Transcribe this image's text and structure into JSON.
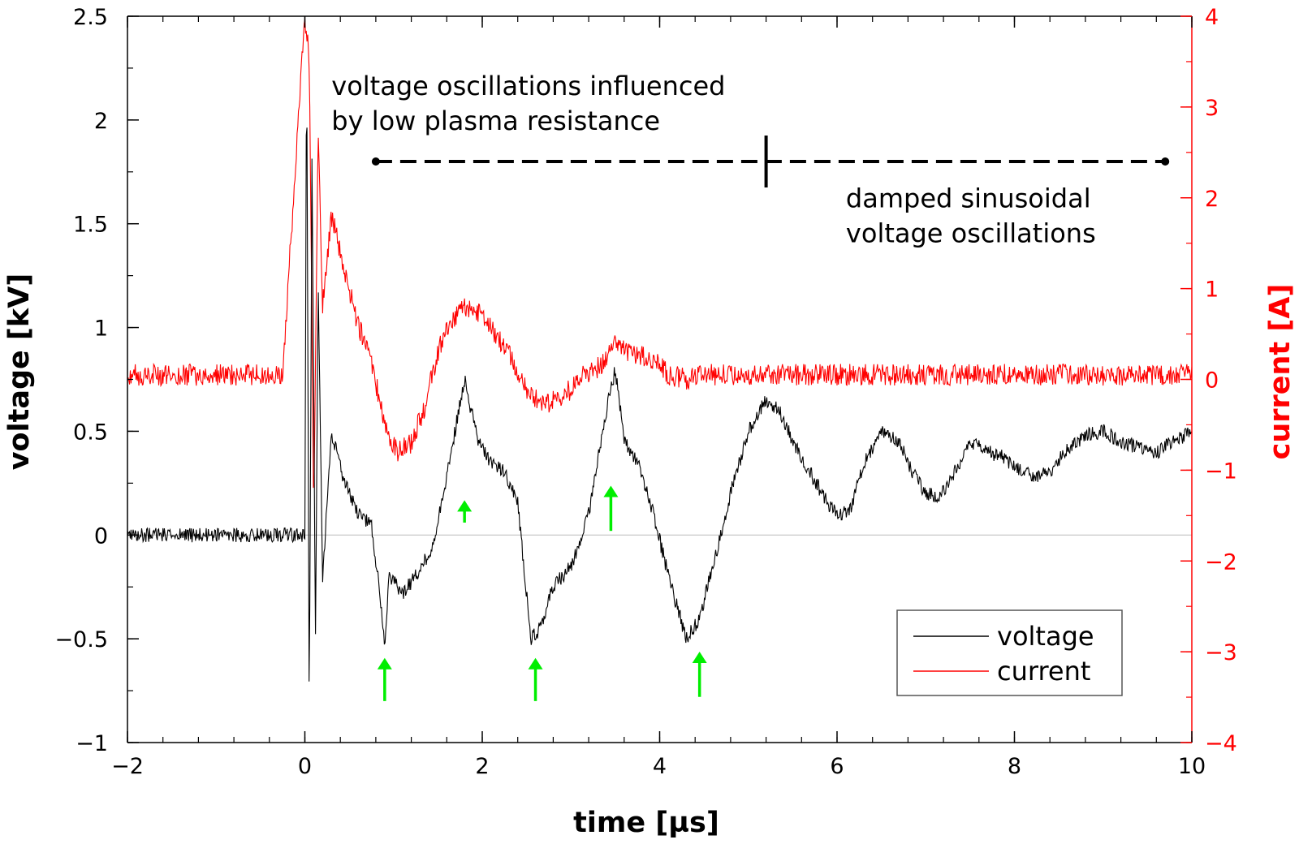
{
  "chart_data": {
    "type": "line",
    "xlabel": "time [µs]",
    "ylabel": "voltage [kV]",
    "y2label": "current [A]",
    "xlim": [
      -2,
      10
    ],
    "ylim": [
      -1,
      2.5
    ],
    "y2lim": [
      -4,
      4
    ],
    "x_ticks": [
      -2,
      0,
      2,
      4,
      6,
      8,
      10
    ],
    "x_tick_labels": [
      "−2",
      "0",
      "2",
      "4",
      "6",
      "8",
      "10"
    ],
    "y_ticks": [
      -1,
      -0.5,
      0,
      0.5,
      1,
      1.5,
      2,
      2.5
    ],
    "y_tick_labels": [
      "−1",
      "−0.5",
      "0",
      "0.5",
      "1",
      "1.5",
      "2",
      "2.5"
    ],
    "y2_ticks": [
      -4,
      -3,
      -2,
      -1,
      0,
      1,
      2,
      3,
      4
    ],
    "y2_tick_labels": [
      "−4",
      "−3",
      "−2",
      "−1",
      "0",
      "1",
      "2",
      "3",
      "4"
    ],
    "grid": false,
    "zero_line": true,
    "legend_placement": "bottom-right",
    "colors": {
      "voltage": "#000000",
      "current": "#ff0000",
      "arrows": "#00ee00"
    },
    "series": [
      {
        "name": "voltage",
        "axis": "left",
        "x": [
          -2,
          0,
          0.02,
          0.05,
          0.08,
          0.12,
          0.15,
          0.2,
          0.3,
          0.45,
          0.6,
          0.75,
          0.85,
          0.9,
          0.95,
          1.1,
          1.25,
          1.45,
          1.65,
          1.8,
          1.95,
          2.1,
          2.25,
          2.4,
          2.55,
          2.65,
          2.8,
          3.0,
          3.2,
          3.4,
          3.5,
          3.6,
          3.75,
          3.9,
          4.1,
          4.3,
          4.45,
          4.6,
          4.8,
          5.0,
          5.2,
          5.35,
          5.5,
          5.7,
          5.9,
          6.0,
          6.15,
          6.3,
          6.5,
          6.7,
          6.85,
          7.0,
          7.15,
          7.3,
          7.5,
          7.7,
          7.85,
          8.0,
          8.2,
          8.4,
          8.6,
          8.8,
          9.0,
          9.2,
          9.4,
          9.6,
          9.8,
          10
        ],
        "y": [
          0,
          0,
          2.4,
          -0.9,
          1.8,
          -0.5,
          1.2,
          -0.2,
          0.5,
          0.25,
          0.1,
          0.05,
          -0.3,
          -0.55,
          -0.2,
          -0.28,
          -0.2,
          -0.05,
          0.4,
          0.75,
          0.45,
          0.35,
          0.3,
          0.15,
          -0.5,
          -0.45,
          -0.25,
          -0.15,
          0.1,
          0.6,
          0.8,
          0.45,
          0.35,
          0.15,
          -0.2,
          -0.5,
          -0.4,
          -0.15,
          0.2,
          0.5,
          0.65,
          0.6,
          0.45,
          0.3,
          0.15,
          0.1,
          0.12,
          0.35,
          0.5,
          0.45,
          0.3,
          0.2,
          0.18,
          0.28,
          0.45,
          0.4,
          0.38,
          0.33,
          0.28,
          0.3,
          0.42,
          0.48,
          0.5,
          0.45,
          0.42,
          0.4,
          0.45,
          0.5
        ]
      },
      {
        "name": "current",
        "axis": "right",
        "x": [
          -2,
          -0.25,
          -0.24,
          0,
          0.05,
          0.1,
          0.15,
          0.2,
          0.3,
          0.45,
          0.6,
          0.75,
          0.9,
          1.05,
          1.2,
          1.35,
          1.5,
          1.65,
          1.8,
          1.95,
          2.1,
          2.25,
          2.4,
          2.55,
          2.75,
          2.95,
          3.15,
          3.35,
          3.5,
          3.6,
          3.8,
          3.95,
          4.1,
          4.3,
          4.5,
          10
        ],
        "y": [
          0.05,
          0.05,
          0.25,
          4,
          3.5,
          -1.5,
          2.8,
          0.8,
          1.8,
          1.2,
          0.6,
          0.2,
          -0.5,
          -0.8,
          -0.7,
          -0.3,
          0.3,
          0.65,
          0.8,
          0.75,
          0.55,
          0.35,
          0.1,
          -0.2,
          -0.25,
          -0.15,
          0.05,
          0.15,
          0.45,
          0.3,
          0.25,
          0.2,
          0.05,
          0.0,
          0.05,
          0.05
        ]
      }
    ],
    "annotations": [
      {
        "lines": [
          "voltage oscillations influenced",
          "by low plasma resistance"
        ],
        "x": 0.3,
        "y": 2.12
      },
      {
        "lines": [
          "damped sinusoidal",
          "voltage oscillations"
        ],
        "x": 6.1,
        "y": 1.58
      }
    ],
    "range_indicator": {
      "x_start": 0.8,
      "x_split": 5.2,
      "x_end": 9.7,
      "y": 1.8
    },
    "arrows": [
      {
        "x": 0.9,
        "y_tail": -0.8,
        "y_head": -0.6
      },
      {
        "x": 1.8,
        "y_tail": 0.06,
        "y_head": 0.16
      },
      {
        "x": 2.6,
        "y_tail": -0.8,
        "y_head": -0.6
      },
      {
        "x": 3.45,
        "y_tail": 0.02,
        "y_head": 0.23
      },
      {
        "x": 4.45,
        "y_tail": -0.78,
        "y_head": -0.57
      }
    ]
  }
}
